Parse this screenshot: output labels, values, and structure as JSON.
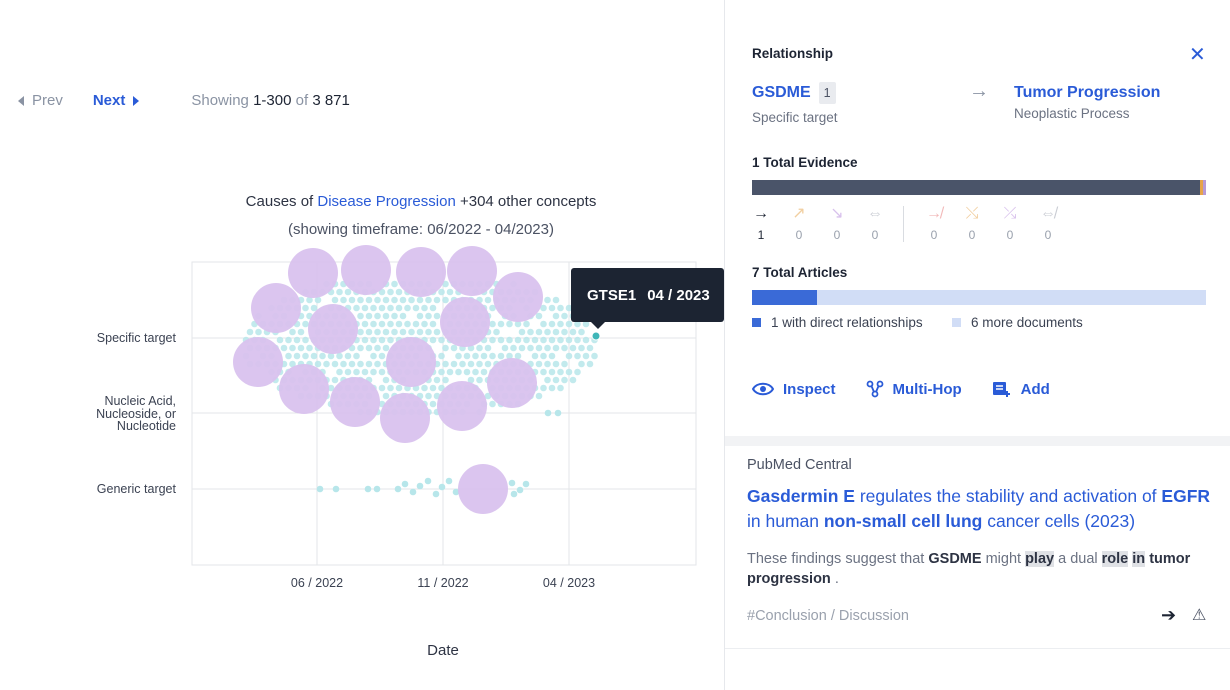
{
  "pager": {
    "prev_label": "Prev",
    "next_label": "Next",
    "showing_prefix": "Showing",
    "range": "1-300",
    "of_label": "of",
    "total": "3 871"
  },
  "chart": {
    "title_prefix": "Causes of",
    "title_link": "Disease Progression",
    "title_suffix": "+304 other concepts",
    "subtitle": "(showing timeframe: 06/2022 - 04/2023)"
  },
  "chart_data": {
    "type": "scatter",
    "xlabel": "Date",
    "categories": [
      "Specific target",
      "Nucleic Acid, Nucleoside, or Nucleotide",
      "Generic target"
    ],
    "x_ticks": [
      "06 / 2022",
      "11 / 2022",
      "04 / 2023"
    ],
    "series": [
      {
        "values": [
          {
            "x": "03 / 2022",
            "y": "Specific target",
            "size": "large"
          },
          {
            "x": "04 / 2022",
            "y": "Specific target",
            "size": "large"
          },
          {
            "x": "06 / 2022",
            "y": "Specific target",
            "size": "large"
          },
          {
            "x": "06 / 2022",
            "y": "Specific target",
            "size": "large"
          },
          {
            "x": "07 / 2022",
            "y": "Specific target",
            "size": "large"
          },
          {
            "x": "09 / 2022",
            "y": "Specific target",
            "size": "large"
          },
          {
            "x": "10 / 2022",
            "y": "Specific target",
            "size": "large"
          },
          {
            "x": "11 / 2022",
            "y": "Specific target",
            "size": "large"
          },
          {
            "x": "12 / 2022",
            "y": "Specific target",
            "size": "large"
          },
          {
            "x": "03 / 2023",
            "y": "Specific target",
            "size": "large"
          },
          {
            "x": "05 / 2022",
            "y": "Nucleic Acid, Nucleoside, or Nucleotide",
            "size": "large"
          },
          {
            "x": "07 / 2022",
            "y": "Nucleic Acid, Nucleoside, or Nucleotide",
            "size": "large"
          },
          {
            "x": "09 / 2022",
            "y": "Nucleic Acid, Nucleoside, or Nucleotide",
            "size": "large"
          },
          {
            "x": "11 / 2022",
            "y": "Nucleic Acid, Nucleoside, or Nucleotide",
            "size": "large"
          },
          {
            "x": "01 / 2023",
            "y": "Nucleic Acid, Nucleoside, or Nucleotide",
            "size": "large"
          },
          {
            "x": "12 / 2022",
            "y": "Generic target",
            "size": "large"
          },
          {
            "x": "04 / 2023",
            "y": "Specific target",
            "size": "small",
            "label": "GTSE1"
          }
        ]
      }
    ],
    "tooltip": {
      "name": "GTSE1",
      "date": "04 / 2023"
    },
    "colors": {
      "large": "#d9c2ee",
      "small": "#b7e6ea",
      "highlight": "#3fb6b8"
    }
  },
  "panel": {
    "title": "Relationship",
    "entity_a": {
      "name": "GSDME",
      "badge": "1",
      "type": "Specific target"
    },
    "entity_b": {
      "name": "Tumor Progression",
      "type": "Neoplastic Process"
    },
    "evidence_title": "1 Total Evidence",
    "evidence_counts": [
      "1",
      "0",
      "0",
      "0",
      "0",
      "0",
      "0",
      "0"
    ],
    "articles_title": "7 Total Articles",
    "legend_direct": "1 with direct relationships",
    "legend_more": "6 more documents",
    "actions": {
      "inspect": "Inspect",
      "multihop": "Multi-Hop",
      "add": "Add"
    }
  },
  "article": {
    "source": "PubMed Central",
    "title_1": "Gasdermin E",
    "title_2": " regulates the stability and activation of ",
    "title_3": "EGFR",
    "title_4": " in human ",
    "title_5": "non-small cell lung",
    "title_6": " cancer cells (2023)",
    "snip_1": "These findings suggest that ",
    "snip_2": "GSDME",
    "snip_3": " might ",
    "snip_4": "play",
    "snip_5": " a dual ",
    "snip_6": "role",
    "snip_7": " ",
    "snip_8": "in",
    "snip_9": " ",
    "snip_10": "tumor progression",
    "snip_11": " .",
    "tag": "#Conclusion / Discussion"
  }
}
